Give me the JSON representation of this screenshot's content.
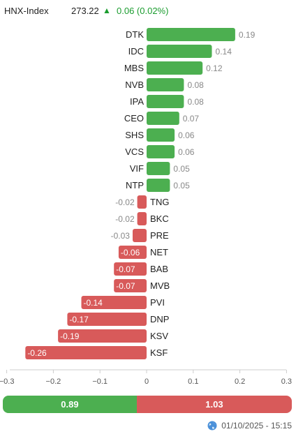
{
  "header": {
    "index_name": "HNX-Index",
    "index_value": "273.22",
    "arrow": "▲",
    "change": "0.06 (0.02%)"
  },
  "chart_data": {
    "type": "bar",
    "orientation": "horizontal",
    "categories": [
      "DTK",
      "IDC",
      "MBS",
      "NVB",
      "IPA",
      "CEO",
      "SHS",
      "VCS",
      "VIF",
      "NTP",
      "TNG",
      "BKC",
      "PRE",
      "NET",
      "BAB",
      "MVB",
      "PVI",
      "DNP",
      "KSV",
      "KSF"
    ],
    "values": [
      0.19,
      0.14,
      0.12,
      0.08,
      0.08,
      0.07,
      0.06,
      0.06,
      0.05,
      0.05,
      -0.02,
      -0.02,
      -0.03,
      -0.06,
      -0.07,
      -0.07,
      -0.14,
      -0.17,
      -0.19,
      -0.26
    ],
    "labels": [
      "0.19",
      "0.14",
      "0.12",
      "0.08",
      "0.08",
      "0.07",
      "0.06",
      "0.06",
      "0.05",
      "0.05",
      "-0.02",
      "-0.02",
      "-0.03",
      "-0.06",
      "-0.07",
      "-0.07",
      "-0.14",
      "-0.17",
      "-0.19",
      "-0.26"
    ],
    "xlim": [
      -0.3,
      0.3
    ],
    "ticks": [
      -0.3,
      -0.2,
      -0.1,
      0,
      0.1,
      0.2,
      0.3
    ],
    "tick_labels": [
      "−0.3",
      "−0.2",
      "−0.1",
      "0",
      "0.1",
      "0.2",
      "0.3"
    ],
    "positive_color": "#4caf50",
    "negative_color": "#d85a5a",
    "grid": false
  },
  "summary": {
    "advancing_value": 0.89,
    "declining_value": 1.03,
    "advancing_label": "0.89",
    "declining_label": "1.03",
    "advancing_color": "#4caf50",
    "declining_color": "#d85a5a"
  },
  "footer": {
    "icon": "globe-icon",
    "timestamp": "01/10/2025 - 15:15"
  }
}
